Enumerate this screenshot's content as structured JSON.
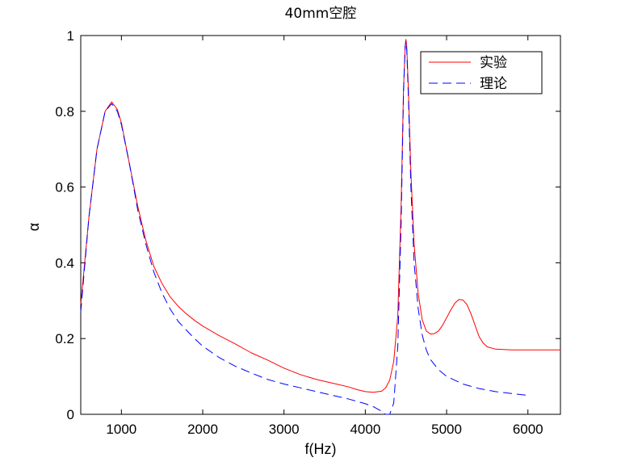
{
  "chart_data": {
    "type": "line",
    "title": "40mm空腔",
    "xlabel": "f(Hz)",
    "ylabel": "α",
    "xlim": [
      500,
      6400
    ],
    "ylim": [
      0,
      1
    ],
    "xticks": [
      1000,
      2000,
      3000,
      4000,
      5000,
      6000
    ],
    "xtick_labels": [
      "1000",
      "2000",
      "3000",
      "4000",
      "5000",
      "6000"
    ],
    "yticks": [
      0,
      0.2,
      0.4,
      0.6,
      0.8,
      1
    ],
    "ytick_labels": [
      "0",
      "0.2",
      "0.4",
      "0.6",
      "0.8",
      "1"
    ],
    "grid": false,
    "legend_position": "top-right",
    "series": [
      {
        "name": "实验",
        "color": "#ff0000",
        "dash": "solid",
        "x": [
          500,
          600,
          700,
          800,
          880,
          950,
          1000,
          1100,
          1200,
          1300,
          1400,
          1500,
          1600,
          1700,
          1800,
          1900,
          2000,
          2200,
          2400,
          2600,
          2800,
          3000,
          3200,
          3400,
          3600,
          3800,
          3900,
          4000,
          4100,
          4200,
          4250,
          4300,
          4350,
          4400,
          4440,
          4470,
          4490,
          4500,
          4510,
          4530,
          4560,
          4600,
          4650,
          4700,
          4750,
          4800,
          4850,
          4900,
          4950,
          5000,
          5050,
          5100,
          5150,
          5200,
          5250,
          5300,
          5350,
          5400,
          5450,
          5500,
          5600,
          5800,
          6000,
          6200,
          6400
        ],
        "y": [
          0.29,
          0.52,
          0.7,
          0.8,
          0.825,
          0.805,
          0.77,
          0.66,
          0.55,
          0.46,
          0.39,
          0.345,
          0.31,
          0.285,
          0.265,
          0.248,
          0.233,
          0.208,
          0.186,
          0.162,
          0.143,
          0.122,
          0.105,
          0.092,
          0.082,
          0.072,
          0.065,
          0.06,
          0.058,
          0.061,
          0.07,
          0.09,
          0.14,
          0.26,
          0.55,
          0.86,
          0.97,
          0.99,
          0.97,
          0.86,
          0.64,
          0.45,
          0.32,
          0.25,
          0.22,
          0.212,
          0.213,
          0.22,
          0.235,
          0.255,
          0.275,
          0.293,
          0.303,
          0.302,
          0.29,
          0.265,
          0.235,
          0.205,
          0.188,
          0.178,
          0.172,
          0.17,
          0.17,
          0.17,
          0.17
        ]
      },
      {
        "name": "理论",
        "color": "#0000ff",
        "dash": "dashed",
        "x": [
          500,
          600,
          700,
          800,
          880,
          950,
          1000,
          1100,
          1200,
          1300,
          1400,
          1500,
          1600,
          1700,
          1800,
          1900,
          2000,
          2200,
          2400,
          2600,
          2800,
          3000,
          3200,
          3400,
          3600,
          3800,
          3900,
          4000,
          4100,
          4200,
          4250,
          4300,
          4350,
          4400,
          4440,
          4470,
          4490,
          4500,
          4510,
          4530,
          4560,
          4600,
          4650,
          4700,
          4750,
          4800,
          4900,
          5000,
          5200,
          5400,
          5600,
          5800,
          6000
        ],
        "y": [
          0.27,
          0.52,
          0.7,
          0.8,
          0.82,
          0.8,
          0.765,
          0.66,
          0.54,
          0.45,
          0.375,
          0.32,
          0.278,
          0.245,
          0.222,
          0.2,
          0.18,
          0.15,
          0.127,
          0.109,
          0.092,
          0.08,
          0.07,
          0.06,
          0.05,
          0.04,
          0.034,
          0.028,
          0.02,
          0.008,
          0.0,
          0.0,
          0.03,
          0.18,
          0.5,
          0.85,
          0.97,
          0.985,
          0.96,
          0.84,
          0.6,
          0.4,
          0.28,
          0.21,
          0.17,
          0.145,
          0.118,
          0.1,
          0.08,
          0.068,
          0.06,
          0.055,
          0.05
        ]
      }
    ]
  }
}
